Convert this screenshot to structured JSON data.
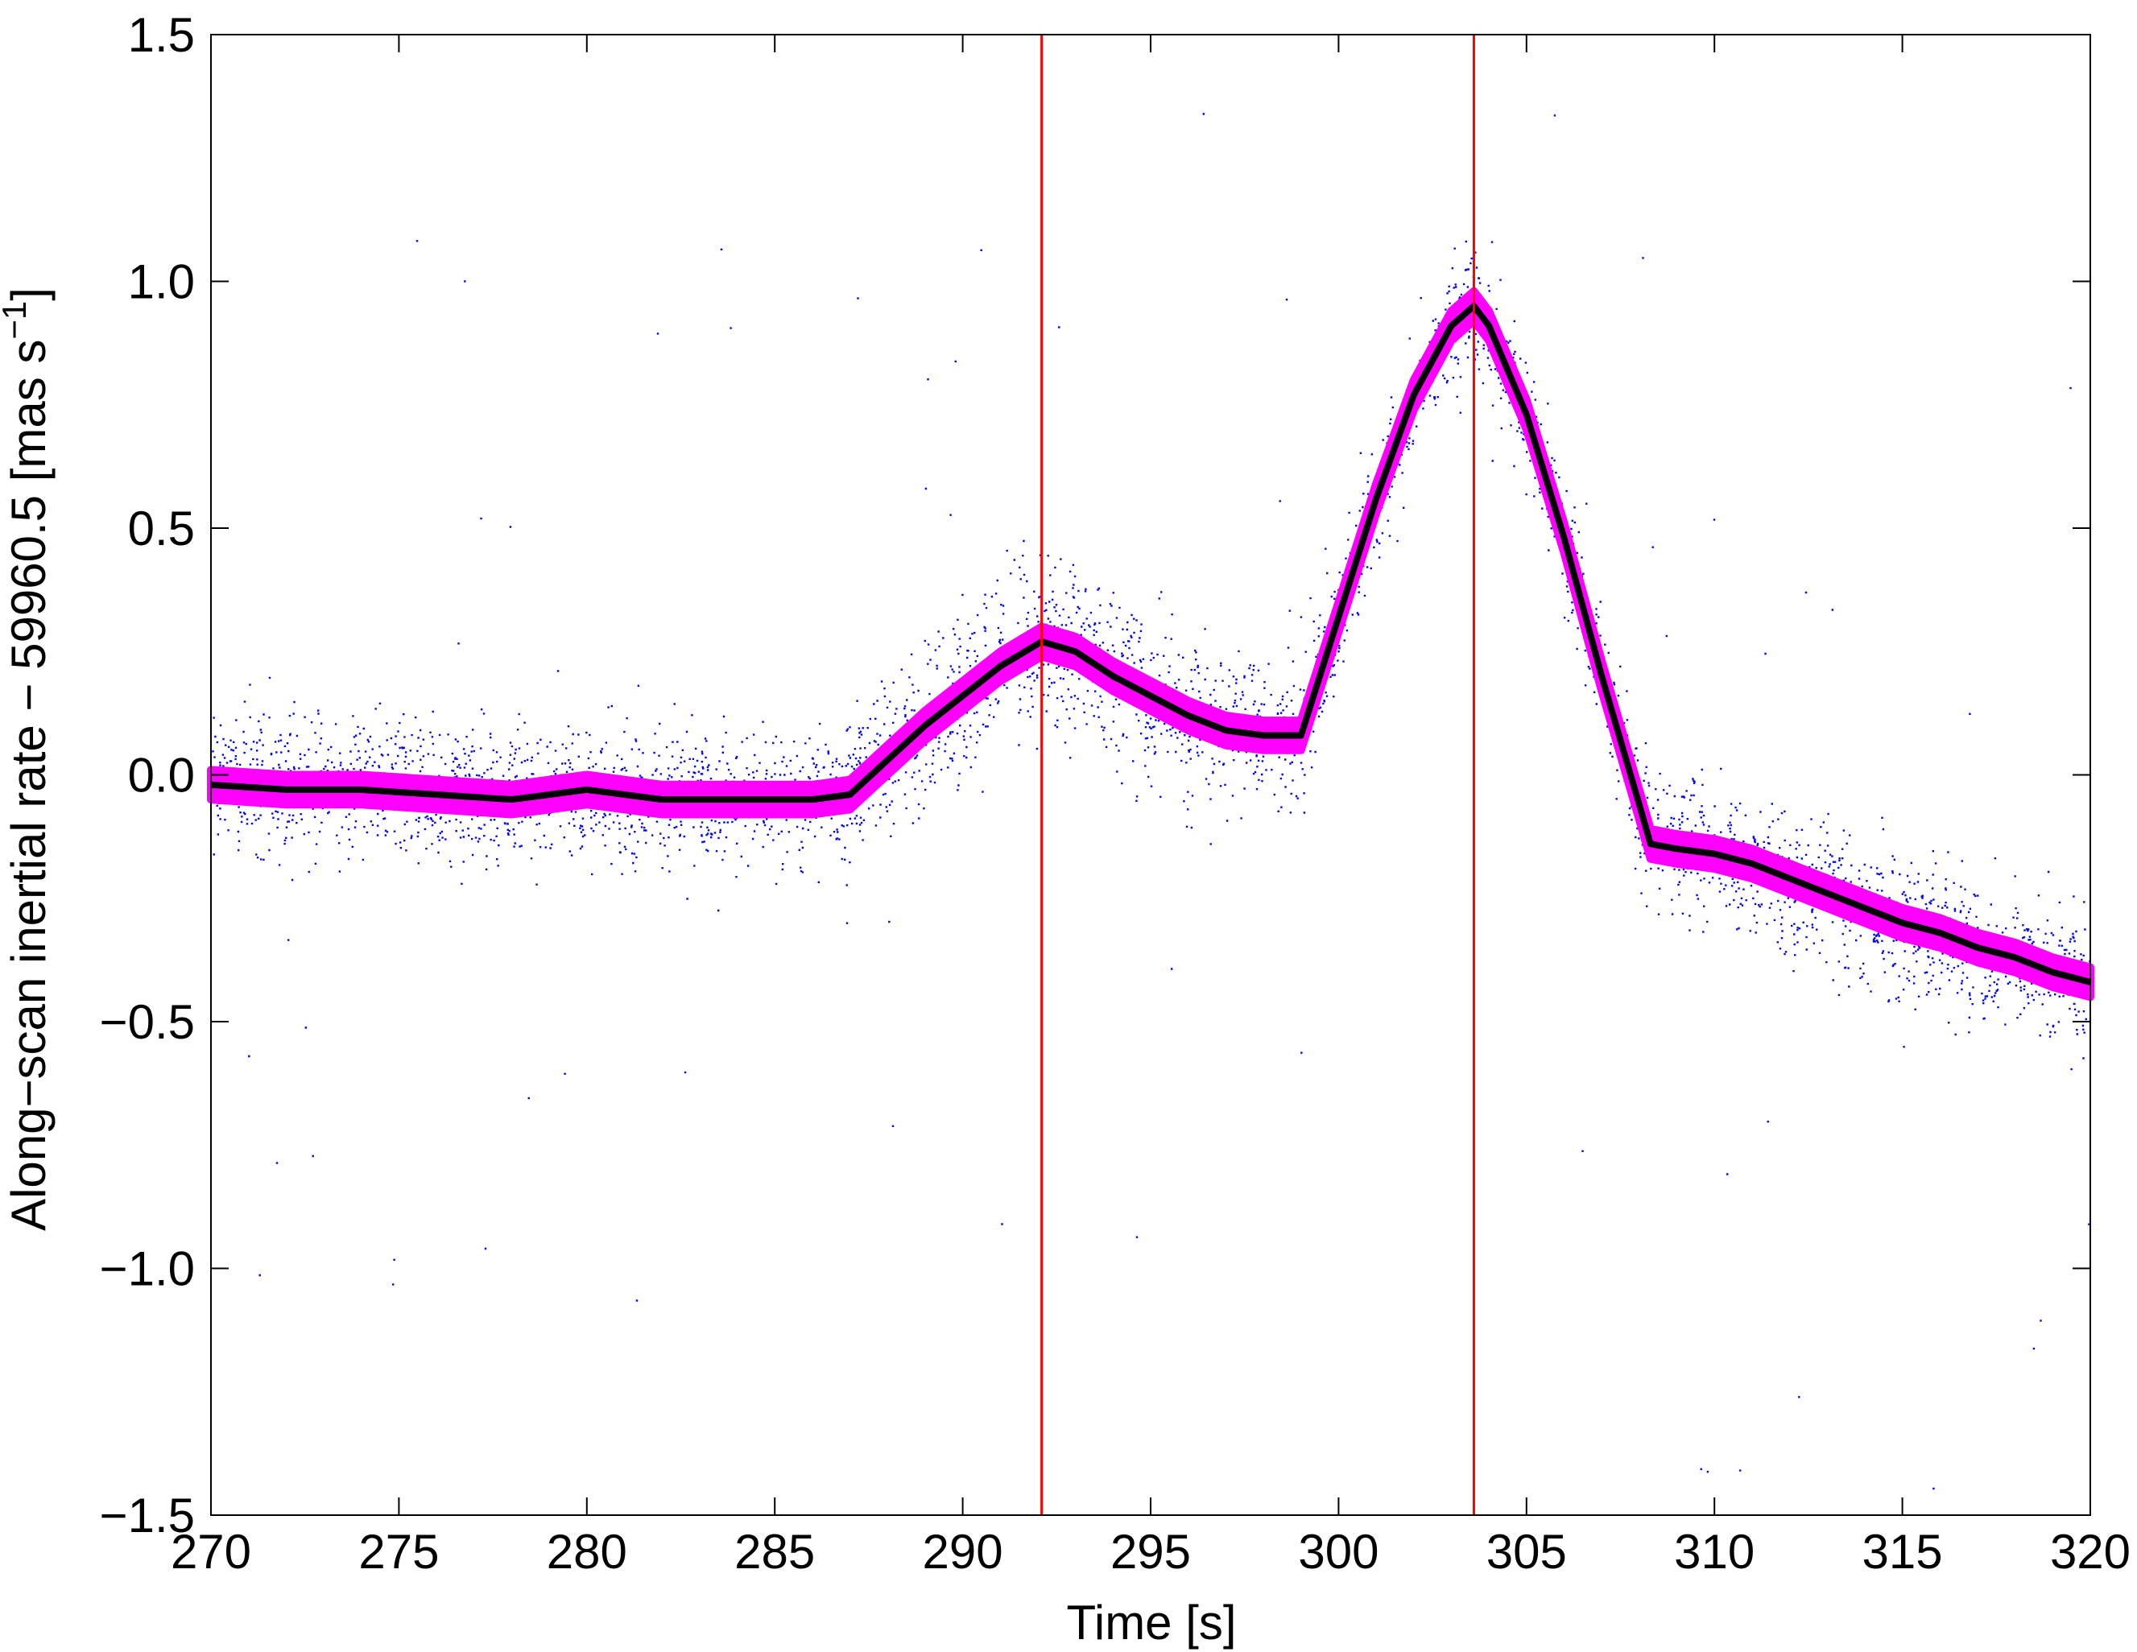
{
  "chart_data": {
    "type": "scatter",
    "title": "",
    "xlabel": "Time [s]",
    "ylabel": {
      "main": "Along−scan inertial rate − 59960.5 [mas s",
      "superscript": "−1",
      "close": "]"
    },
    "xlim": [
      270,
      320
    ],
    "ylim": [
      -1.5,
      1.5
    ],
    "xticks": [
      {
        "value": 270,
        "label": "270"
      },
      {
        "value": 275,
        "label": "275"
      },
      {
        "value": 280,
        "label": "280"
      },
      {
        "value": 285,
        "label": "285"
      },
      {
        "value": 290,
        "label": "290"
      },
      {
        "value": 295,
        "label": "295"
      },
      {
        "value": 300,
        "label": "300"
      },
      {
        "value": 305,
        "label": "305"
      },
      {
        "value": 310,
        "label": "310"
      },
      {
        "value": 315,
        "label": "315"
      },
      {
        "value": 320,
        "label": "320"
      }
    ],
    "yticks": [
      {
        "value": -1.5,
        "label": "−1.5"
      },
      {
        "value": -1.0,
        "label": "−1.0"
      },
      {
        "value": -0.5,
        "label": "−0.5"
      },
      {
        "value": 0.0,
        "label": "0.0"
      },
      {
        "value": 0.5,
        "label": "0.5"
      },
      {
        "value": 1.0,
        "label": "1.0"
      },
      {
        "value": 1.5,
        "label": "1.5"
      }
    ],
    "grid": false,
    "legend": "none",
    "vertical_lines": [
      {
        "x": 292.1,
        "color": "#ff0000"
      },
      {
        "x": 303.6,
        "color": "#ff0000"
      }
    ],
    "series": [
      {
        "kind": "scatter",
        "color": "#0000ff",
        "trend": {
          "x": [
            270,
            275,
            280,
            285,
            286,
            288,
            290,
            291,
            292.1,
            293,
            295,
            297,
            298,
            299,
            300,
            301,
            302,
            303,
            303.6,
            304,
            305,
            306,
            307,
            308,
            308.3,
            310,
            312,
            315,
            318,
            320
          ],
          "y": [
            0.0,
            -0.03,
            -0.04,
            -0.05,
            -0.05,
            0.02,
            0.16,
            0.23,
            0.28,
            0.25,
            0.16,
            0.09,
            0.08,
            0.08,
            0.32,
            0.56,
            0.77,
            0.91,
            0.96,
            0.91,
            0.73,
            0.48,
            0.2,
            -0.06,
            -0.12,
            -0.16,
            -0.22,
            -0.31,
            -0.38,
            -0.42
          ]
        },
        "spread": {
          "x": [
            270,
            286,
            288,
            292.1,
            296,
            299,
            300,
            303.6,
            307,
            308.3,
            312,
            320
          ],
          "sd": [
            0.07,
            0.07,
            0.08,
            0.09,
            0.09,
            0.08,
            0.055,
            0.065,
            0.06,
            0.07,
            0.07,
            0.075
          ]
        }
      },
      {
        "kind": "band",
        "color": "#ff00ff",
        "x": [
          270,
          272,
          274,
          276,
          278,
          280,
          282,
          284,
          286,
          287,
          288,
          289,
          290,
          291,
          292.1,
          293,
          294,
          295,
          296,
          297,
          298,
          299,
          300,
          301,
          302,
          303,
          303.6,
          304,
          305,
          306,
          307,
          308,
          308.3,
          309,
          310,
          311,
          312,
          313,
          314,
          315,
          316,
          317,
          318,
          319,
          320
        ],
        "y": [
          -0.02,
          -0.03,
          -0.03,
          -0.04,
          -0.05,
          -0.03,
          -0.05,
          -0.05,
          -0.05,
          -0.04,
          0.03,
          0.1,
          0.16,
          0.22,
          0.27,
          0.25,
          0.2,
          0.16,
          0.12,
          0.09,
          0.08,
          0.08,
          0.32,
          0.56,
          0.77,
          0.91,
          0.95,
          0.91,
          0.73,
          0.48,
          0.2,
          -0.06,
          -0.14,
          -0.15,
          -0.16,
          -0.18,
          -0.21,
          -0.24,
          -0.27,
          -0.3,
          -0.32,
          -0.35,
          -0.37,
          -0.4,
          -0.42
        ],
        "halfwidth": 0.03
      },
      {
        "kind": "line",
        "color": "#000000",
        "x": [
          270,
          272,
          274,
          276,
          278,
          280,
          282,
          284,
          286,
          287,
          288,
          289,
          290,
          291,
          292.1,
          293,
          294,
          295,
          296,
          297,
          298,
          299,
          300,
          301,
          302,
          303,
          303.6,
          304,
          305,
          306,
          307,
          308,
          308.3,
          309,
          310,
          311,
          312,
          313,
          314,
          315,
          316,
          317,
          318,
          319,
          320
        ],
        "y": [
          -0.02,
          -0.03,
          -0.03,
          -0.04,
          -0.05,
          -0.03,
          -0.05,
          -0.05,
          -0.05,
          -0.04,
          0.03,
          0.1,
          0.16,
          0.22,
          0.27,
          0.25,
          0.2,
          0.16,
          0.12,
          0.09,
          0.08,
          0.08,
          0.32,
          0.56,
          0.77,
          0.91,
          0.95,
          0.91,
          0.73,
          0.48,
          0.2,
          -0.06,
          -0.14,
          -0.15,
          -0.16,
          -0.18,
          -0.21,
          -0.24,
          -0.27,
          -0.3,
          -0.32,
          -0.35,
          -0.37,
          -0.4,
          -0.42
        ]
      }
    ]
  }
}
